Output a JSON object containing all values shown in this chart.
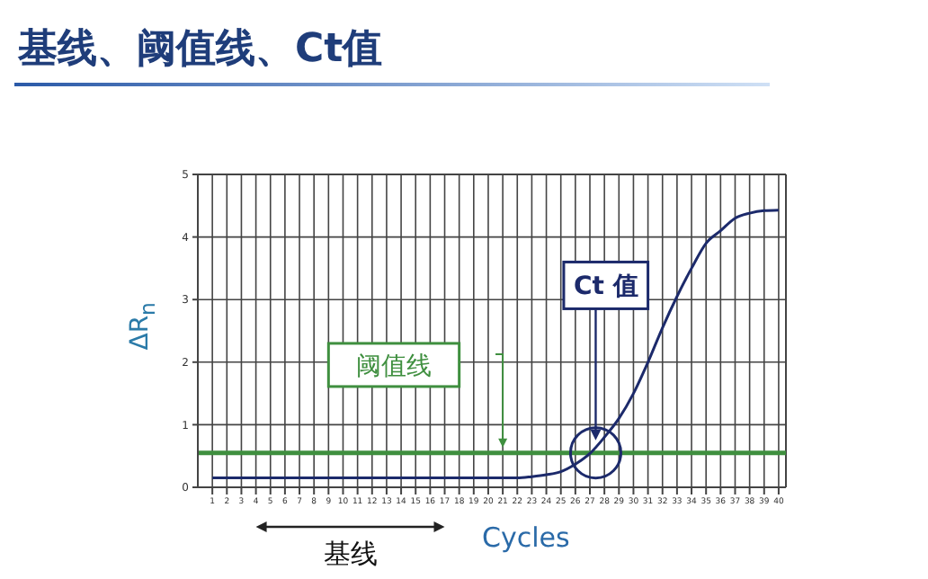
{
  "chart_data": {
    "type": "line",
    "title": "基线、阈值线、Ct值",
    "xlabel": "Cycles",
    "ylabel": "ΔR$_{n}$",
    "x": [
      1,
      2,
      3,
      4,
      5,
      6,
      7,
      8,
      9,
      10,
      11,
      12,
      13,
      14,
      15,
      16,
      17,
      18,
      19,
      20,
      21,
      22,
      23,
      24,
      25,
      26,
      27,
      28,
      29,
      30,
      31,
      32,
      33,
      34,
      35,
      36,
      37,
      38,
      39,
      40
    ],
    "series": [
      {
        "color": "#1c2a6b",
        "values": [
          0.15,
          0.15,
          0.15,
          0.15,
          0.15,
          0.15,
          0.15,
          0.15,
          0.15,
          0.15,
          0.15,
          0.15,
          0.15,
          0.15,
          0.15,
          0.15,
          0.15,
          0.15,
          0.15,
          0.15,
          0.15,
          0.15,
          0.17,
          0.2,
          0.25,
          0.37,
          0.54,
          0.8,
          1.1,
          1.5,
          2.0,
          2.55,
          3.05,
          3.5,
          3.9,
          4.1,
          4.3,
          4.38,
          4.42,
          4.43
        ]
      }
    ],
    "xlim": [
      0,
      40.5
    ],
    "xticks": [
      1,
      2,
      3,
      4,
      5,
      6,
      7,
      8,
      9,
      10,
      11,
      12,
      13,
      14,
      15,
      16,
      17,
      18,
      19,
      20,
      21,
      22,
      23,
      24,
      25,
      26,
      27,
      28,
      29,
      30,
      31,
      32,
      33,
      34,
      35,
      36,
      37,
      38,
      39,
      40
    ],
    "ylim": [
      0,
      5
    ],
    "yticks": [
      0,
      1,
      2,
      3,
      4,
      5
    ],
    "grid": true,
    "marker": "none",
    "line_style": "solid",
    "ref_lines": [
      {
        "axis": "y",
        "value": 0.55,
        "label": "阈值线",
        "color": "#3f8f3f"
      }
    ],
    "annotations": [
      "Ct 值",
      "基线"
    ]
  }
}
